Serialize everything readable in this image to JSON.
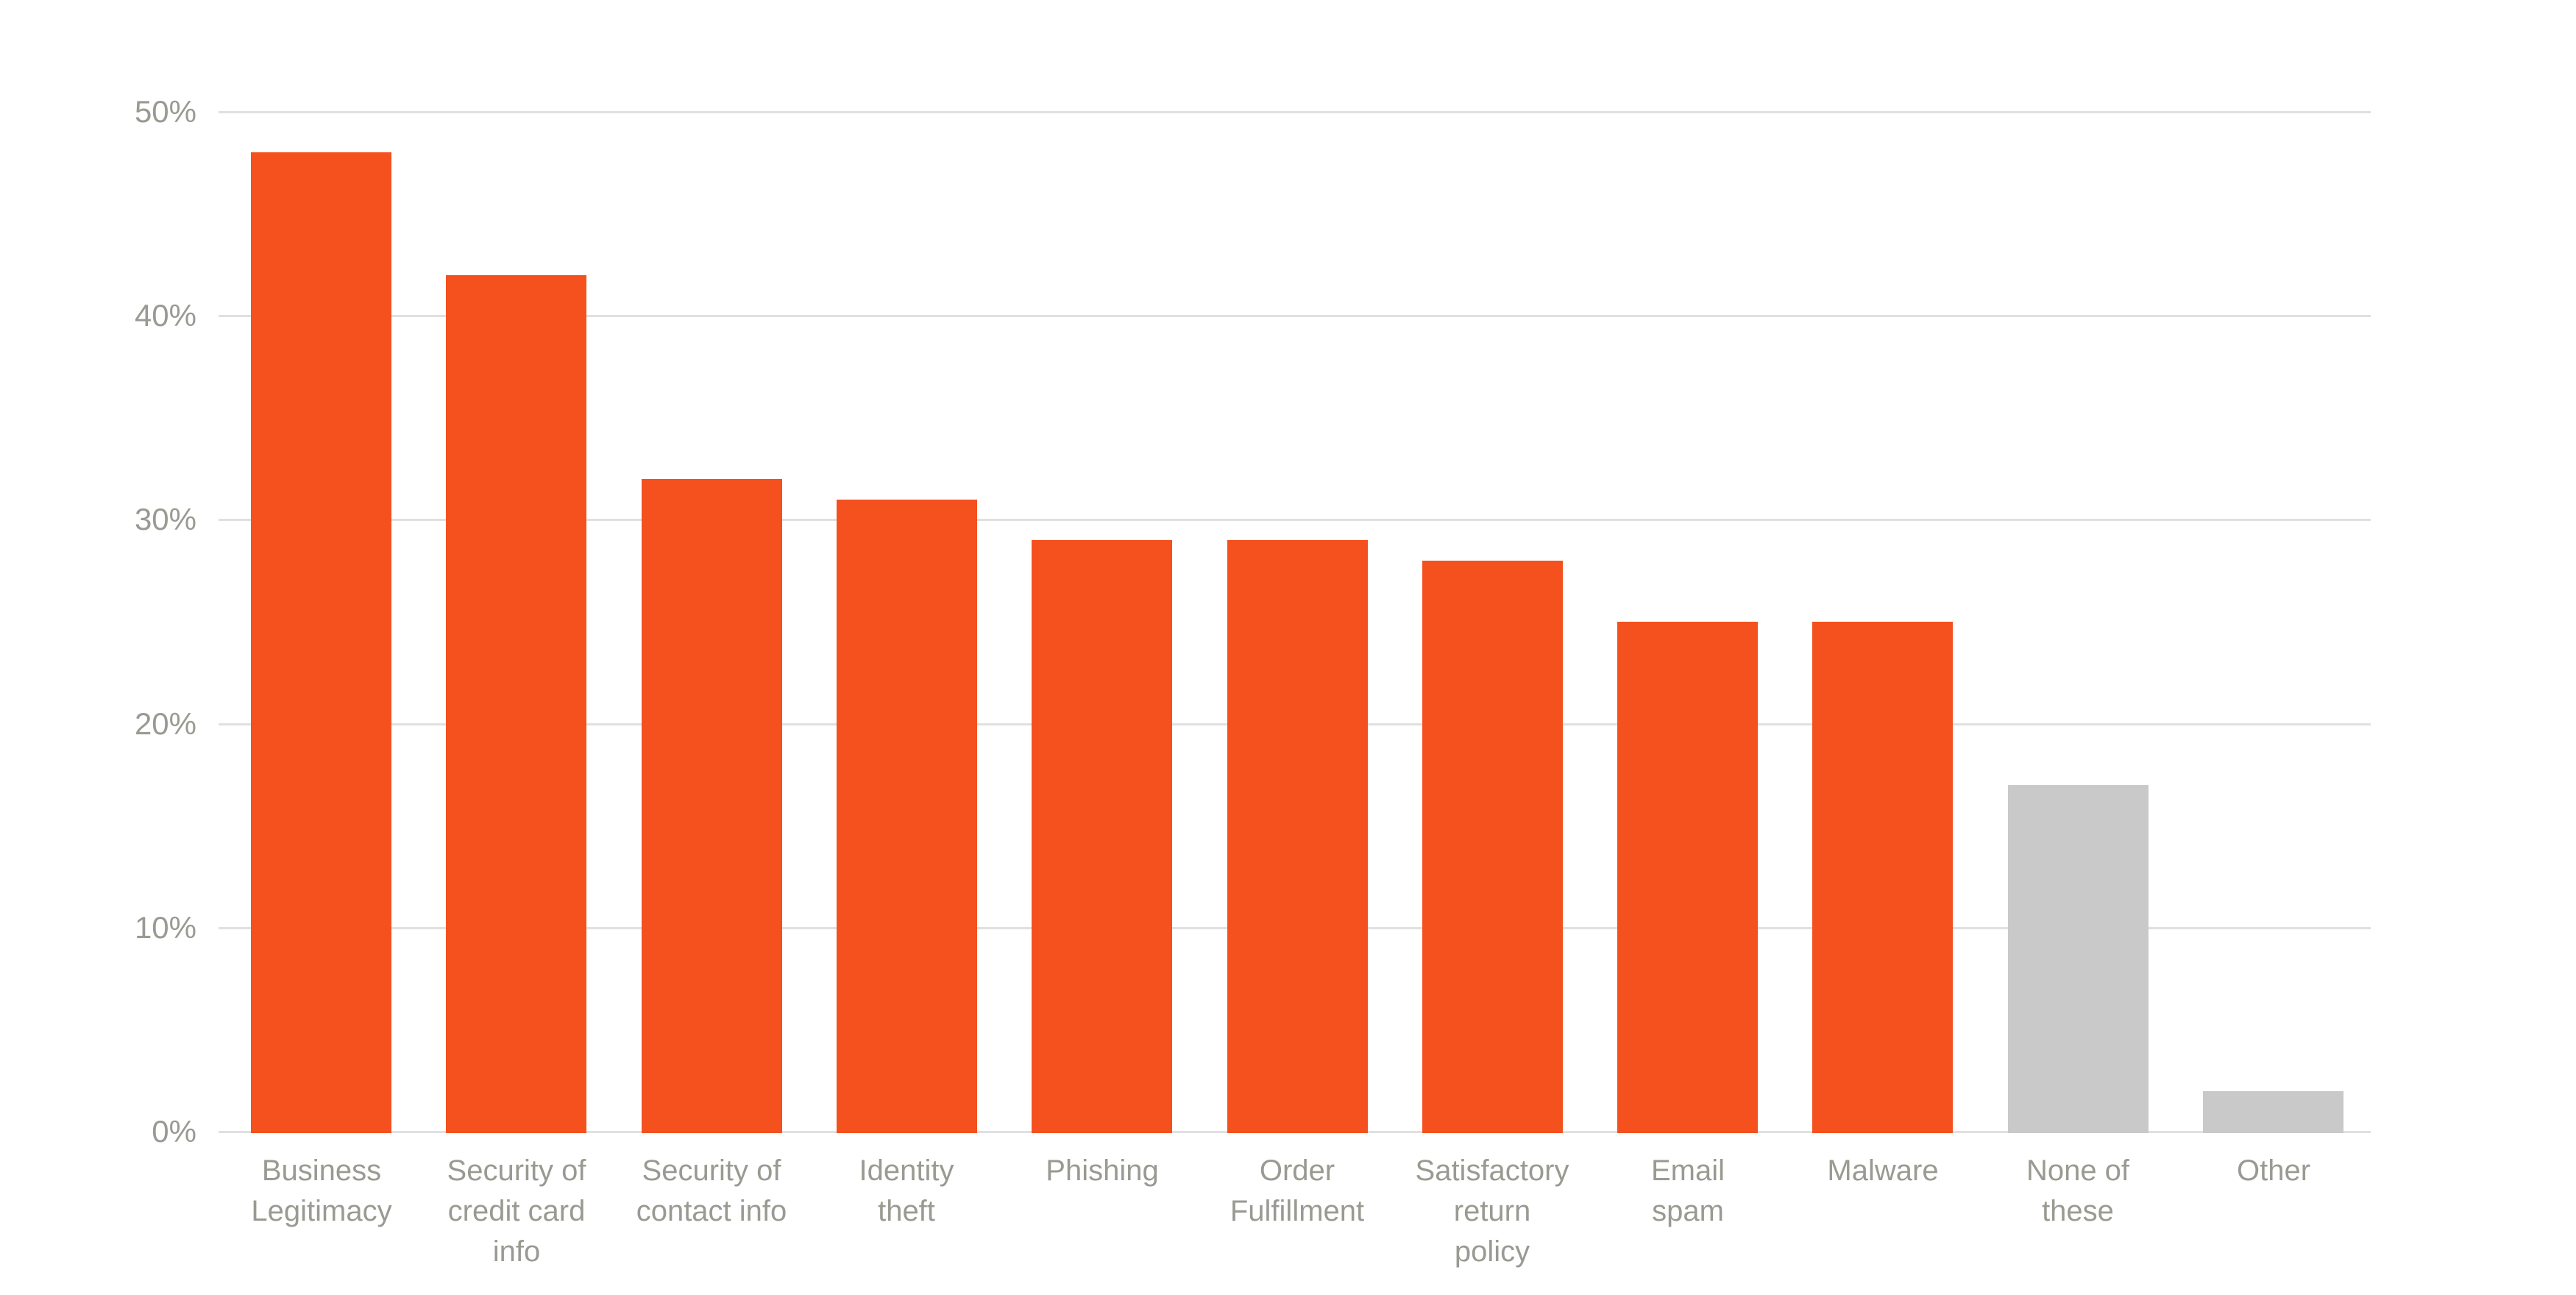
{
  "colors": {
    "bar_highlight": "#F4511E",
    "bar_muted": "#C9C9C9",
    "axis_text": "#9A9A92",
    "gridline": "#E0E0E0",
    "background": "#FFFFFF"
  },
  "chart_data": {
    "type": "bar",
    "title": "",
    "xlabel": "",
    "ylabel": "",
    "unit": "%",
    "ylim": [
      0,
      50
    ],
    "grid": true,
    "legend": "none",
    "categories": [
      "Business Legitimacy",
      "Security of credit card info",
      "Security of contact info",
      "Identity theft",
      "Phishing",
      "Order Fulfillment",
      "Satisfactory return policy",
      "Email spam",
      "Malware",
      "None of these",
      "Other"
    ],
    "values": [
      48,
      42,
      32,
      31,
      29,
      29,
      28,
      25,
      25,
      17,
      2
    ],
    "bar_color_keys": [
      "bar_highlight",
      "bar_highlight",
      "bar_highlight",
      "bar_highlight",
      "bar_highlight",
      "bar_highlight",
      "bar_highlight",
      "bar_highlight",
      "bar_highlight",
      "bar_muted",
      "bar_muted"
    ],
    "category_label_lines": [
      [
        "Business",
        "Legitimacy"
      ],
      [
        "Security of",
        "credit card",
        "info"
      ],
      [
        "Security of",
        "contact info"
      ],
      [
        "Identity",
        "theft"
      ],
      [
        "Phishing"
      ],
      [
        "Order",
        "Fulfillment"
      ],
      [
        "Satisfactory",
        "return",
        "policy"
      ],
      [
        "Email",
        "spam"
      ],
      [
        "Malware"
      ],
      [
        "None of",
        "these"
      ],
      [
        "Other"
      ]
    ],
    "yticks": [
      0,
      10,
      20,
      30,
      40,
      50
    ],
    "ytick_labels": [
      "0%",
      "10%",
      "20%",
      "30%",
      "40%",
      "50%"
    ]
  }
}
